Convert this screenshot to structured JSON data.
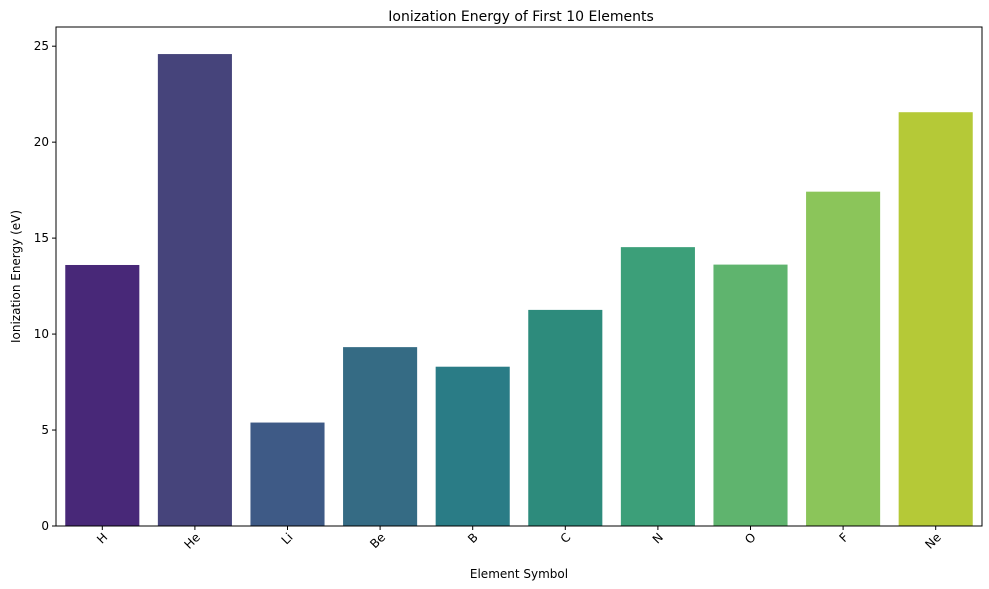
{
  "chart_data": {
    "type": "bar",
    "title": "Ionization Energy of First 10 Elements",
    "xlabel": "Element Symbol",
    "ylabel": "Ionization Energy (eV)",
    "categories": [
      "H",
      "He",
      "Li",
      "Be",
      "B",
      "C",
      "N",
      "O",
      "F",
      "Ne"
    ],
    "values": [
      13.6,
      24.59,
      5.39,
      9.32,
      8.3,
      11.26,
      14.53,
      13.62,
      17.42,
      21.56
    ],
    "colors": [
      "#482878",
      "#46447b",
      "#3e5a86",
      "#356b84",
      "#2a7c86",
      "#2d8b7c",
      "#3c9f79",
      "#5fb46e",
      "#8bc55a",
      "#b5c937"
    ],
    "ylim": [
      0,
      26
    ],
    "yticks": [
      0,
      5,
      10,
      15,
      20,
      25
    ],
    "xtick_rotation": 45,
    "grid": false,
    "legend": "none"
  }
}
